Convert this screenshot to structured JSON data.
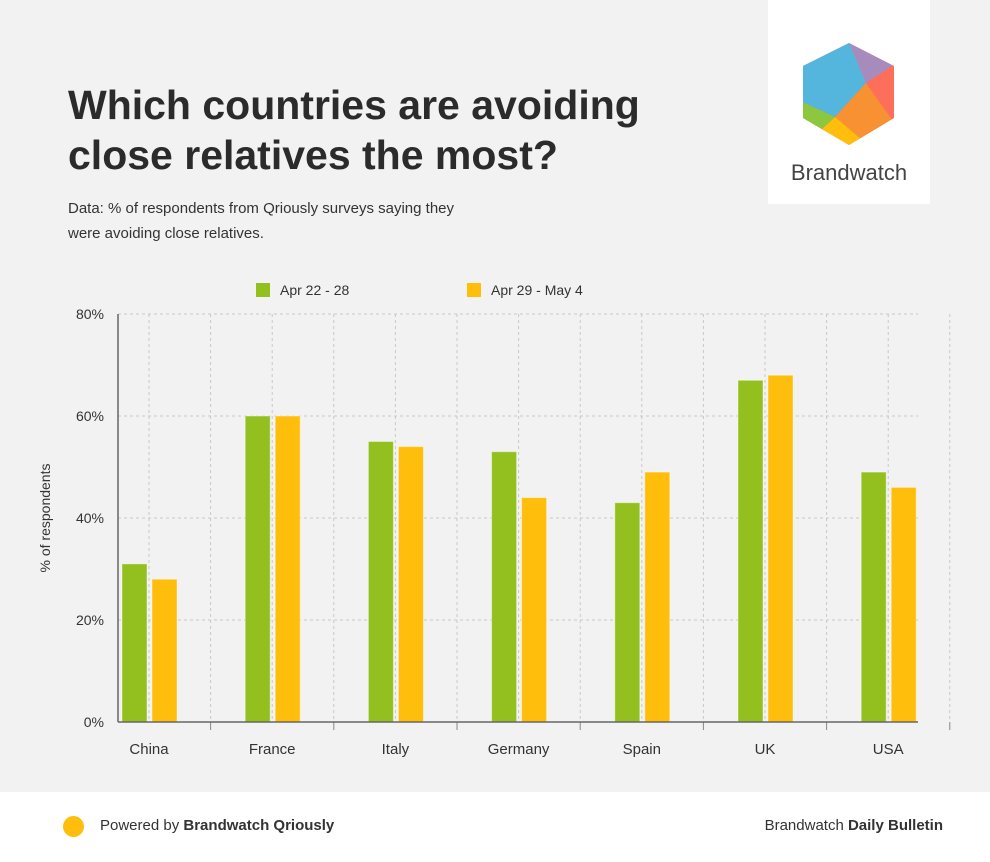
{
  "title": "Which countries are avoiding close relatives the most?",
  "subtitle": "Data: % of respondents from Qriously surveys saying they were avoiding close relatives.",
  "logo": {
    "text": "Brandwatch"
  },
  "footer": {
    "powered_prefix": "Powered by ",
    "powered_brand": "Brandwatch Qriously",
    "right_prefix": "Brandwatch ",
    "right_bold": "Daily Bulletin"
  },
  "colors": {
    "series1": "#93c01f",
    "series2": "#ffbe0b"
  },
  "chart_data": {
    "type": "bar",
    "categories": [
      "China",
      "France",
      "Italy",
      "Germany",
      "Spain",
      "UK",
      "USA"
    ],
    "series": [
      {
        "name": "Apr 22 - 28",
        "values": [
          31,
          60,
          55,
          53,
          43,
          67,
          49
        ]
      },
      {
        "name": "Apr 29 - May 4",
        "values": [
          28,
          60,
          54,
          44,
          49,
          68,
          46
        ]
      }
    ],
    "ylabel": "% of respondents",
    "xlabel": "",
    "ylim": [
      0,
      80
    ],
    "yticks": [
      "0%",
      "20%",
      "40%",
      "60%",
      "80%"
    ],
    "grid": true,
    "legend": "top"
  }
}
